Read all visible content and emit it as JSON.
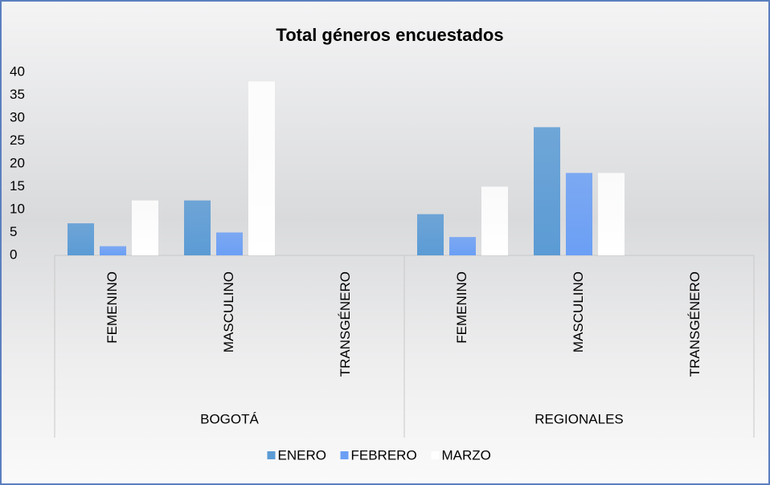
{
  "chart_data": {
    "type": "bar",
    "title": "Total géneros encuestados",
    "groups": [
      {
        "name": "BOGOTÁ",
        "categories": [
          "FEMENINO",
          "MASCULINO",
          "TRANSGÉNERO"
        ]
      },
      {
        "name": "REGIONALES",
        "categories": [
          "FEMENINO",
          "MASCULINO",
          "TRANSGÉNERO"
        ]
      }
    ],
    "series": [
      {
        "name": "ENERO",
        "color": "#5b9bd5",
        "values": [
          7,
          12,
          0,
          9,
          28,
          0
        ]
      },
      {
        "name": "FEBRERO",
        "color": "#6b9ff5",
        "values": [
          2,
          5,
          0,
          4,
          18,
          0
        ]
      },
      {
        "name": "MARZO",
        "color": "#ffffff",
        "values": [
          12,
          38,
          0,
          15,
          18,
          0
        ]
      }
    ],
    "ylim": [
      0,
      40
    ],
    "yticks": [
      0,
      5,
      10,
      15,
      20,
      25,
      30,
      35,
      40
    ],
    "grid": false,
    "legend": "bottom"
  }
}
